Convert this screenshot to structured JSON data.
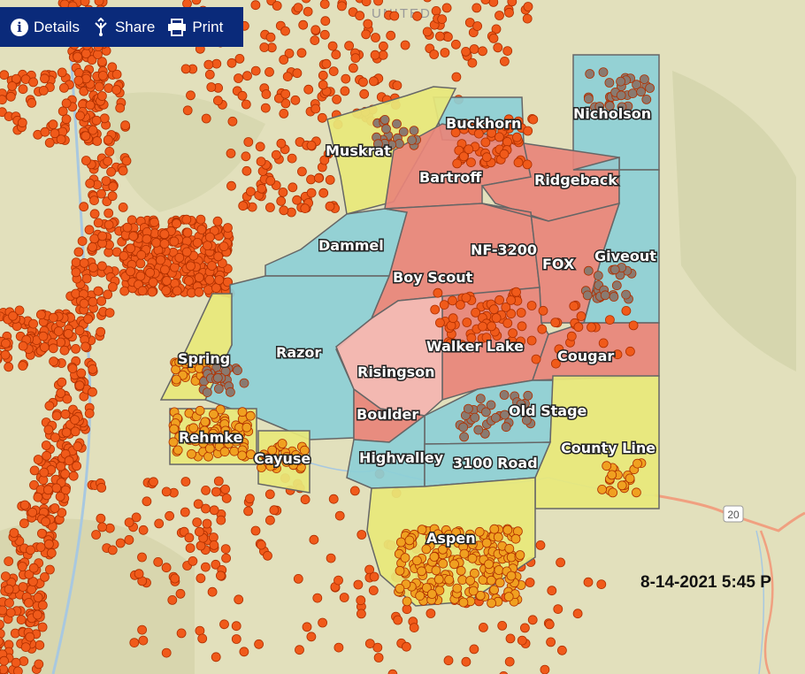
{
  "toolbar": {
    "details_label": "Details",
    "share_label": "Share",
    "print_label": "Print",
    "details_icon": "info-icon",
    "share_icon": "share-icon",
    "print_icon": "printer-icon"
  },
  "map": {
    "basemap_label": "UNITED",
    "highway_shield": "20",
    "timestamp": "8-14-2021 5:45 P",
    "colors": {
      "red_zone": "#e8847a",
      "pink_zone": "#f4b4b0",
      "teal_zone": "#8dcfd6",
      "yellow_zone": "#e8e87a",
      "incident_dot": "#f05a1a",
      "incident_dot_in_yellow": "#f0a020",
      "structure_dot": "#8a7a70"
    },
    "zones": [
      {
        "name": "Nicholson",
        "color": "teal"
      },
      {
        "name": "Buckhorn",
        "color": "teal"
      },
      {
        "name": "Muskrat",
        "color": "yellow"
      },
      {
        "name": "Bartroff",
        "color": "red"
      },
      {
        "name": "Ridgeback",
        "color": "red"
      },
      {
        "name": "Giveout",
        "color": "teal"
      },
      {
        "name": "Dammel",
        "color": "teal"
      },
      {
        "name": "NF-3200",
        "color": "red"
      },
      {
        "name": "FOX",
        "color": "red"
      },
      {
        "name": "Boy Scout",
        "color": "red"
      },
      {
        "name": "Razor",
        "color": "teal"
      },
      {
        "name": "Walker Lake",
        "color": "red"
      },
      {
        "name": "Risingson",
        "color": "pink"
      },
      {
        "name": "Cougar",
        "color": "red"
      },
      {
        "name": "Spring",
        "color": "yellow"
      },
      {
        "name": "Boulder",
        "color": "red"
      },
      {
        "name": "Old Stage",
        "color": "teal"
      },
      {
        "name": "Rehmke",
        "color": "yellow"
      },
      {
        "name": "County Line",
        "color": "yellow"
      },
      {
        "name": "Cayuse",
        "color": "yellow"
      },
      {
        "name": "Highvalley",
        "color": "teal"
      },
      {
        "name": "3100 Road",
        "color": "teal"
      },
      {
        "name": "Aspen",
        "color": "yellow"
      }
    ]
  }
}
